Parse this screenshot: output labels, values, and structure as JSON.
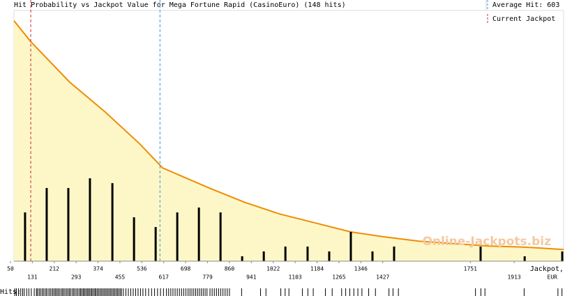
{
  "chart_data": {
    "type": "bar",
    "title": "Hit Probability vs Jackpot Value for Mega Fortune Rapid (CasinoEuro) (148 hits)",
    "watermark": "Online-Jackpots.biz",
    "xlabel": [
      "Jackpot,",
      "EUR"
    ],
    "rug_label": "Hits:",
    "x": [
      104,
      184,
      264,
      344,
      427,
      507,
      587,
      667,
      747,
      827,
      907,
      987,
      1067,
      1149,
      1229,
      1309,
      1389,
      1469,
      1789,
      1952,
      2091
    ],
    "values": [
      10,
      15,
      15,
      17,
      16,
      9,
      7,
      10,
      11,
      10,
      1,
      2,
      3,
      3,
      2,
      6,
      2,
      3,
      3,
      1,
      2
    ],
    "color": "#000000",
    "fit": {
      "color": "#f08c00",
      "fill": "#fdf7c8",
      "x": [
        63,
        125,
        269,
        398,
        527,
        613,
        785,
        915,
        1044,
        1173,
        1309,
        1431,
        1560,
        1689,
        1818,
        1947,
        2096
      ],
      "values": [
        49.3,
        45,
        36.7,
        30.7,
        24.1,
        19.1,
        15,
        12.1,
        9.7,
        7.9,
        6,
        5,
        4.1,
        3.6,
        3.1,
        2.9,
        2.4
      ]
    },
    "average_hit": {
      "label": "Average Hit:",
      "value": 603,
      "color": "#3a9ad9"
    },
    "current_jackpot": {
      "label": "Current Jackpot",
      "value": 125,
      "color": "#d62728"
    },
    "hits": [
      66,
      72,
      80,
      88,
      95,
      101,
      110,
      118,
      127,
      138,
      146,
      150,
      156,
      161,
      167,
      172,
      178,
      183,
      189,
      195,
      200,
      206,
      211,
      216,
      221,
      226,
      231,
      237,
      242,
      247,
      252,
      258,
      263,
      268,
      273,
      279,
      284,
      289,
      295,
      300,
      306,
      310,
      315,
      320,
      324,
      329,
      334,
      338,
      343,
      348,
      352,
      357,
      362,
      366,
      371,
      376,
      381,
      386,
      391,
      396,
      401,
      406,
      411,
      416,
      421,
      426,
      431,
      436,
      441,
      446,
      451,
      456,
      461,
      468,
      477,
      486,
      495,
      504,
      513,
      522,
      531,
      540,
      550,
      561,
      572,
      583,
      594,
      605,
      616,
      627,
      635,
      643,
      651,
      659,
      667,
      675,
      683,
      691,
      699,
      707,
      714,
      721,
      728,
      735,
      742,
      749,
      756,
      763,
      770,
      777,
      788,
      796,
      804,
      812,
      820,
      828,
      836,
      844,
      852,
      860,
      905,
      975,
      995,
      1050,
      1066,
      1080,
      1130,
      1150,
      1170,
      1215,
      1240,
      1275,
      1290,
      1305,
      1320,
      1335,
      1350,
      1375,
      1400,
      1450,
      1465,
      1485,
      1770,
      1790,
      1805,
      1950,
      2075,
      2090
    ],
    "xlim": [
      50,
      2096
    ],
    "ylim": [
      0,
      51.4
    ],
    "xticks": [
      50,
      131,
      212,
      293,
      374,
      455,
      536,
      617,
      698,
      779,
      860,
      941,
      1022,
      1103,
      1184,
      1265,
      1346,
      1427,
      1751,
      1913
    ]
  }
}
